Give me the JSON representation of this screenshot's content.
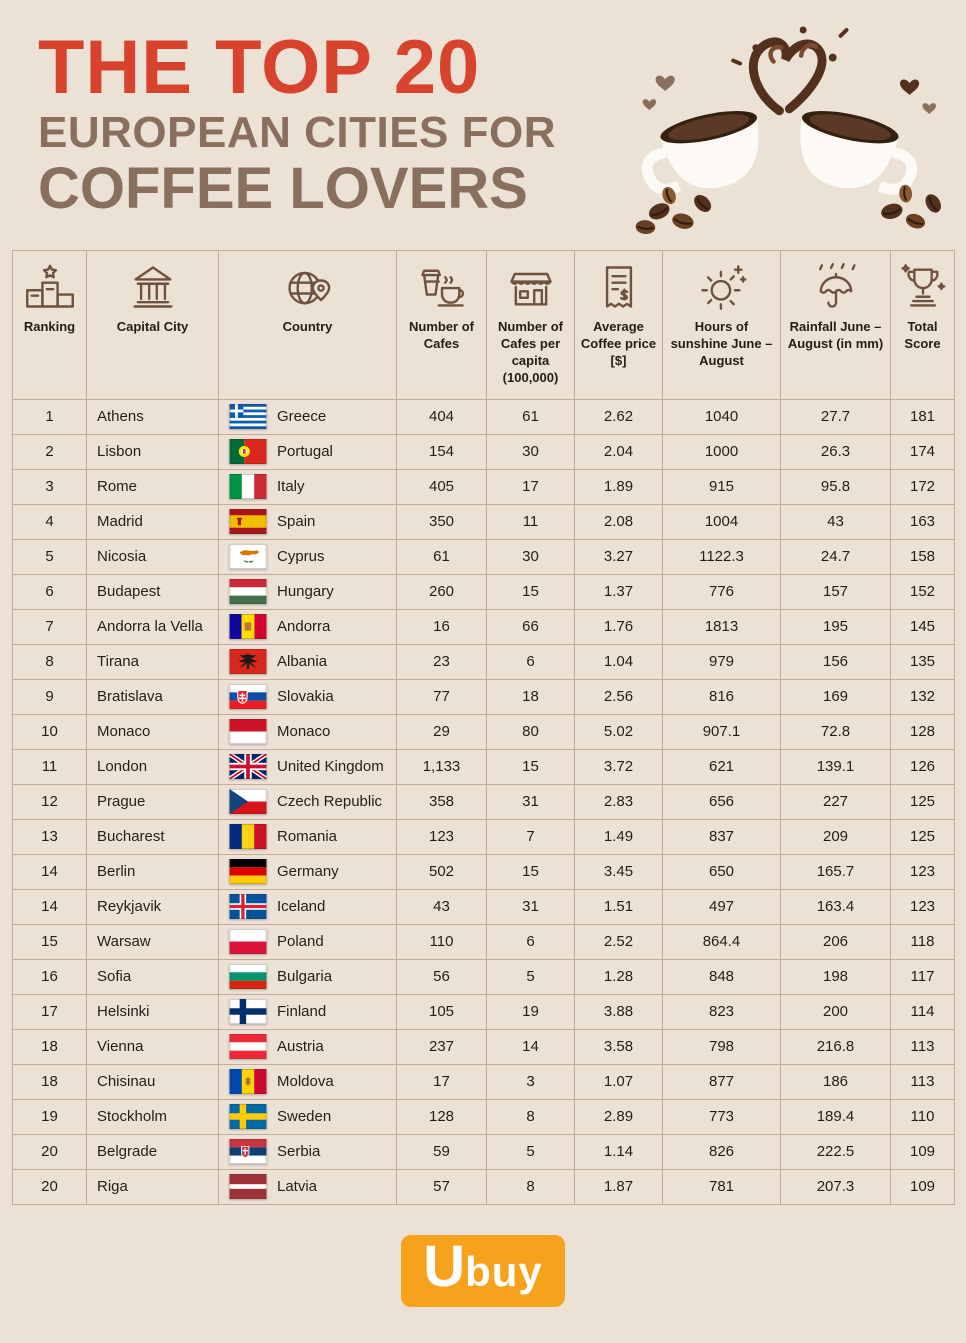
{
  "header": {
    "title_line1": "THE TOP 20",
    "title_line2": "EUROPEAN CITIES FOR",
    "title_line3": "COFFEE LOVERS"
  },
  "colors": {
    "background": "#ece1d5",
    "title_red": "#d8432d",
    "title_brown": "#8a6f5f",
    "table_line": "#c2ab97",
    "text": "#2a211a",
    "logo_orange": "#f6a21d",
    "illustration_brown": "#53311d"
  },
  "footer": {
    "brand_initial": "U",
    "brand_rest": "buy"
  },
  "chart_data": {
    "type": "table",
    "title": "The Top 20 European Cities for Coffee Lovers",
    "columns": [
      {
        "label": "Ranking",
        "icon": "podium-star-icon"
      },
      {
        "label": "Capital City",
        "icon": "building-icon"
      },
      {
        "label": "Country",
        "icon": "globe-pin-icon"
      },
      {
        "label": "Number of Cafes",
        "icon": "coffee-cups-icon"
      },
      {
        "label": "Number of Cafes per capita (100,000)",
        "icon": "cafe-storefront-icon"
      },
      {
        "label": "Average Coffee price [$]",
        "icon": "receipt-icon"
      },
      {
        "label": "Hours of sunshine June – August",
        "icon": "sun-icon"
      },
      {
        "label": "Rainfall June – August (in mm)",
        "icon": "umbrella-rain-icon"
      },
      {
        "label": "Total Score",
        "icon": "trophy-icon"
      }
    ],
    "rows": [
      {
        "rank": "1",
        "city": "Athens",
        "flag": "greece",
        "country": "Greece",
        "cafes": "404",
        "cafes_per_capita": "61",
        "avg_price": "2.62",
        "sunshine": "1040",
        "rainfall": "27.7",
        "score": "181"
      },
      {
        "rank": "2",
        "city": "Lisbon",
        "flag": "portugal",
        "country": "Portugal",
        "cafes": "154",
        "cafes_per_capita": "30",
        "avg_price": "2.04",
        "sunshine": "1000",
        "rainfall": "26.3",
        "score": "174"
      },
      {
        "rank": "3",
        "city": "Rome",
        "flag": "italy",
        "country": "Italy",
        "cafes": "405",
        "cafes_per_capita": "17",
        "avg_price": "1.89",
        "sunshine": "915",
        "rainfall": "95.8",
        "score": "172"
      },
      {
        "rank": "4",
        "city": "Madrid",
        "flag": "spain",
        "country": "Spain",
        "cafes": "350",
        "cafes_per_capita": "11",
        "avg_price": "2.08",
        "sunshine": "1004",
        "rainfall": "43",
        "score": "163"
      },
      {
        "rank": "5",
        "city": "Nicosia",
        "flag": "cyprus",
        "country": "Cyprus",
        "cafes": "61",
        "cafes_per_capita": "30",
        "avg_price": "3.27",
        "sunshine": "1122.3",
        "rainfall": "24.7",
        "score": "158"
      },
      {
        "rank": "6",
        "city": "Budapest",
        "flag": "hungary",
        "country": "Hungary",
        "cafes": "260",
        "cafes_per_capita": "15",
        "avg_price": "1.37",
        "sunshine": "776",
        "rainfall": "157",
        "score": "152"
      },
      {
        "rank": "7",
        "city": "Andorra la Vella",
        "flag": "andorra",
        "country": "Andorra",
        "cafes": "16",
        "cafes_per_capita": "66",
        "avg_price": "1.76",
        "sunshine": "1813",
        "rainfall": "195",
        "score": "145"
      },
      {
        "rank": "8",
        "city": "Tirana",
        "flag": "albania",
        "country": "Albania",
        "cafes": "23",
        "cafes_per_capita": "6",
        "avg_price": "1.04",
        "sunshine": "979",
        "rainfall": "156",
        "score": "135"
      },
      {
        "rank": "9",
        "city": "Bratislava",
        "flag": "slovakia",
        "country": "Slovakia",
        "cafes": "77",
        "cafes_per_capita": "18",
        "avg_price": "2.56",
        "sunshine": "816",
        "rainfall": "169",
        "score": "132"
      },
      {
        "rank": "10",
        "city": "Monaco",
        "flag": "monaco",
        "country": "Monaco",
        "cafes": "29",
        "cafes_per_capita": "80",
        "avg_price": "5.02",
        "sunshine": "907.1",
        "rainfall": "72.8",
        "score": "128"
      },
      {
        "rank": "11",
        "city": "London",
        "flag": "uk",
        "country": "United Kingdom",
        "cafes": "1,133",
        "cafes_per_capita": "15",
        "avg_price": "3.72",
        "sunshine": "621",
        "rainfall": "139.1",
        "score": "126"
      },
      {
        "rank": "12",
        "city": "Prague",
        "flag": "czech",
        "country": "Czech Republic",
        "cafes": "358",
        "cafes_per_capita": "31",
        "avg_price": "2.83",
        "sunshine": "656",
        "rainfall": "227",
        "score": "125"
      },
      {
        "rank": "13",
        "city": "Bucharest",
        "flag": "romania",
        "country": "Romania",
        "cafes": "123",
        "cafes_per_capita": "7",
        "avg_price": "1.49",
        "sunshine": "837",
        "rainfall": "209",
        "score": "125"
      },
      {
        "rank": "14",
        "city": "Berlin",
        "flag": "germany",
        "country": "Germany",
        "cafes": "502",
        "cafes_per_capita": "15",
        "avg_price": "3.45",
        "sunshine": "650",
        "rainfall": "165.7",
        "score": "123"
      },
      {
        "rank": "14",
        "city": "Reykjavik",
        "flag": "iceland",
        "country": "Iceland",
        "cafes": "43",
        "cafes_per_capita": "31",
        "avg_price": "1.51",
        "sunshine": "497",
        "rainfall": "163.4",
        "score": "123"
      },
      {
        "rank": "15",
        "city": "Warsaw",
        "flag": "poland",
        "country": "Poland",
        "cafes": "110",
        "cafes_per_capita": "6",
        "avg_price": "2.52",
        "sunshine": "864.4",
        "rainfall": "206",
        "score": "118"
      },
      {
        "rank": "16",
        "city": "Sofia",
        "flag": "bulgaria",
        "country": "Bulgaria",
        "cafes": "56",
        "cafes_per_capita": "5",
        "avg_price": "1.28",
        "sunshine": "848",
        "rainfall": "198",
        "score": "117"
      },
      {
        "rank": "17",
        "city": "Helsinki",
        "flag": "finland",
        "country": "Finland",
        "cafes": "105",
        "cafes_per_capita": "19",
        "avg_price": "3.88",
        "sunshine": "823",
        "rainfall": "200",
        "score": "114"
      },
      {
        "rank": "18",
        "city": "Vienna",
        "flag": "austria",
        "country": "Austria",
        "cafes": "237",
        "cafes_per_capita": "14",
        "avg_price": "3.58",
        "sunshine": "798",
        "rainfall": "216.8",
        "score": "113"
      },
      {
        "rank": "18",
        "city": "Chisinau",
        "flag": "moldova",
        "country": "Moldova",
        "cafes": "17",
        "cafes_per_capita": "3",
        "avg_price": "1.07",
        "sunshine": "877",
        "rainfall": "186",
        "score": "113"
      },
      {
        "rank": "19",
        "city": "Stockholm",
        "flag": "sweden",
        "country": "Sweden",
        "cafes": "128",
        "cafes_per_capita": "8",
        "avg_price": "2.89",
        "sunshine": "773",
        "rainfall": "189.4",
        "score": "110"
      },
      {
        "rank": "20",
        "city": "Belgrade",
        "flag": "serbia",
        "country": "Serbia",
        "cafes": "59",
        "cafes_per_capita": "5",
        "avg_price": "1.14",
        "sunshine": "826",
        "rainfall": "222.5",
        "score": "109"
      },
      {
        "rank": "20",
        "city": "Riga",
        "flag": "latvia",
        "country": "Latvia",
        "cafes": "57",
        "cafes_per_capita": "8",
        "avg_price": "1.87",
        "sunshine": "781",
        "rainfall": "207.3",
        "score": "109"
      }
    ]
  }
}
